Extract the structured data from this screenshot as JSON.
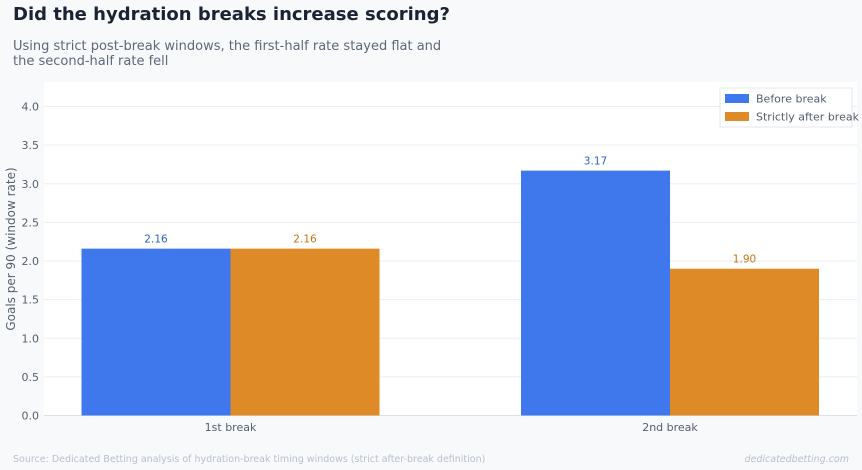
{
  "header": {
    "title": "Did the hydration breaks increase scoring?",
    "subtitle": "Using strict post-break windows, the first-half rate stayed flat and the second-half rate fell"
  },
  "footer": {
    "source": "Source: Dedicated Betting analysis of hydration-break timing windows (strict after-break definition)",
    "brand": "dedicatedbetting.com"
  },
  "colors": {
    "before": "#3f77ec",
    "after": "#dd8a27",
    "before_label": "#2f62c6",
    "after_label": "#c47415"
  },
  "chart_data": {
    "type": "bar",
    "categories": [
      "1st break",
      "2nd break"
    ],
    "series": [
      {
        "name": "Before break",
        "values": [
          2.16,
          3.17
        ],
        "labels": [
          "2.16",
          "3.17"
        ]
      },
      {
        "name": "Strictly after break",
        "values": [
          2.16,
          1.9
        ],
        "labels": [
          "2.16",
          "1.90"
        ]
      }
    ],
    "ylabel": "Goals per 90 (window rate)",
    "xlabel": "",
    "ylim": [
      0,
      4.25
    ],
    "yticks": [
      "0.0",
      "0.5",
      "1.0",
      "1.5",
      "2.0",
      "2.5",
      "3.0",
      "3.5",
      "4.0"
    ],
    "grid": true,
    "legend": "top-right"
  }
}
